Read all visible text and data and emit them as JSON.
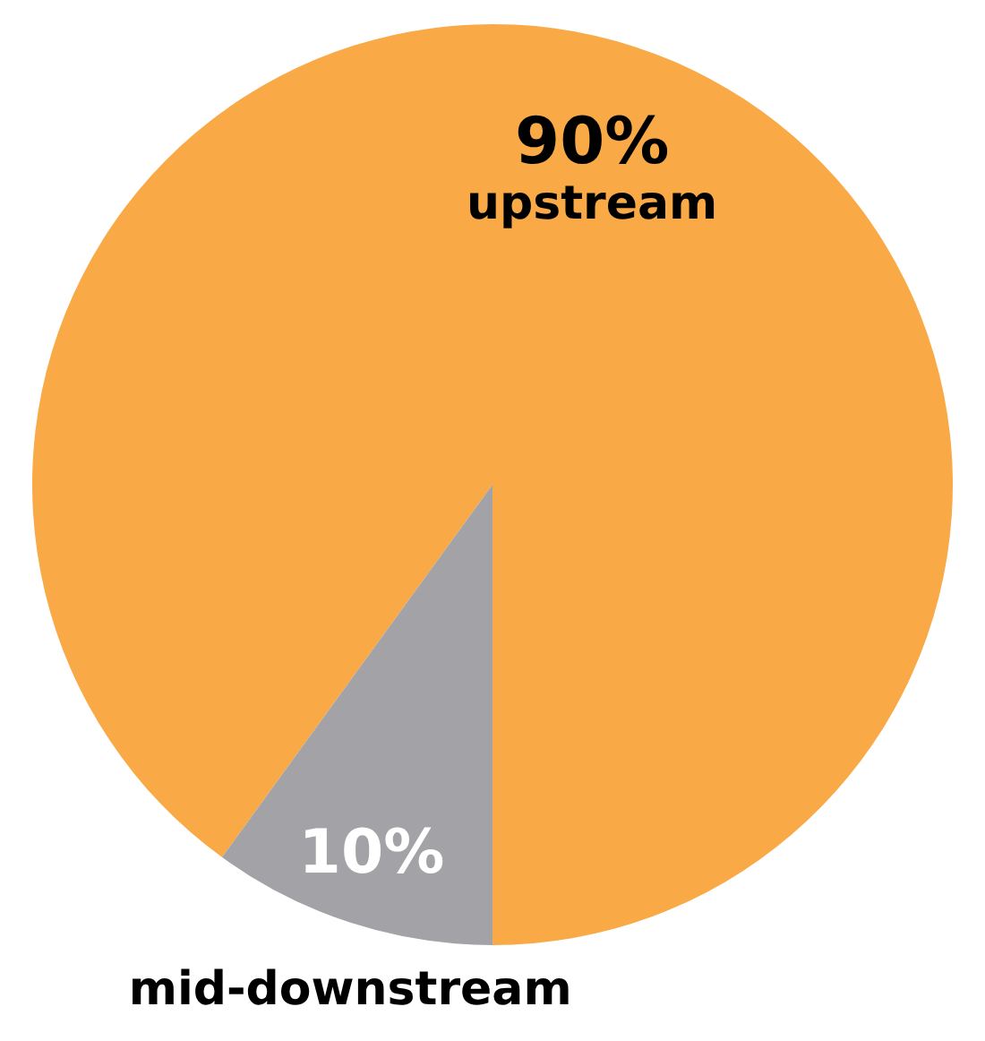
{
  "chart_data": {
    "type": "pie",
    "categories": [
      "upstream",
      "mid-downstream"
    ],
    "values": [
      90,
      10
    ],
    "value_labels": [
      "90%",
      "10%"
    ],
    "colors": [
      "#f9a945",
      "#a3a3a7"
    ]
  }
}
